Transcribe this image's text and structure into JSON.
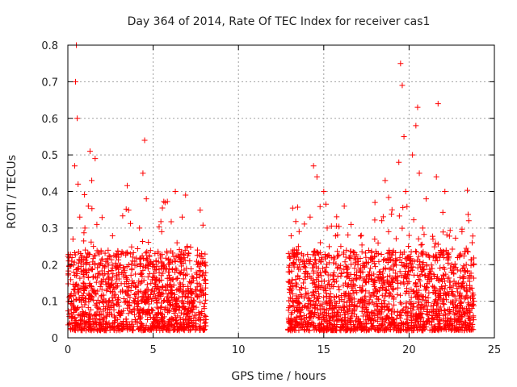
{
  "chart_data": {
    "type": "scatter",
    "title": "Day 364 of 2014, Rate Of TEC Index for receiver cas1",
    "xlabel": "GPS time / hours",
    "ylabel": "ROTI / TECUs",
    "xlim": [
      0,
      25
    ],
    "ylim": [
      0,
      0.8
    ],
    "xticks": [
      "0",
      "5",
      "10",
      "15",
      "20",
      "25"
    ],
    "xtick_values": [
      0,
      5,
      10,
      15,
      20,
      25
    ],
    "yticks": [
      "0",
      "0.1",
      "0.2",
      "0.3",
      "0.4",
      "0.5",
      "0.6",
      "0.7",
      "0.8"
    ],
    "ytick_values": [
      0,
      0.1,
      0.2,
      0.3,
      0.4,
      0.5,
      0.6,
      0.7,
      0.8
    ],
    "grid": true,
    "marker": "+",
    "color": "#ff0000",
    "data_windows_hours": [
      [
        0.0,
        8.1
      ],
      [
        12.9,
        23.8
      ]
    ],
    "series": [
      {
        "name": "ROTI",
        "points": [
          [
            0.1,
            0.04
          ],
          [
            0.2,
            0.12
          ],
          [
            0.3,
            0.27
          ],
          [
            0.4,
            0.47
          ],
          [
            0.45,
            0.7
          ],
          [
            0.5,
            0.8
          ],
          [
            0.55,
            0.6
          ],
          [
            0.6,
            0.42
          ],
          [
            0.7,
            0.33
          ],
          [
            0.8,
            0.22
          ],
          [
            0.9,
            0.15
          ],
          [
            1.0,
            0.3
          ],
          [
            1.1,
            0.18
          ],
          [
            1.2,
            0.36
          ],
          [
            1.3,
            0.51
          ],
          [
            1.4,
            0.43
          ],
          [
            1.5,
            0.25
          ],
          [
            1.6,
            0.49
          ],
          [
            1.7,
            0.31
          ],
          [
            1.8,
            0.2
          ],
          [
            1.9,
            0.14
          ],
          [
            2.0,
            0.1
          ],
          [
            2.2,
            0.08
          ],
          [
            2.4,
            0.16
          ],
          [
            2.6,
            0.11
          ],
          [
            2.8,
            0.19
          ],
          [
            3.0,
            0.07
          ],
          [
            3.2,
            0.13
          ],
          [
            3.4,
            0.17
          ],
          [
            3.6,
            0.09
          ],
          [
            3.8,
            0.21
          ],
          [
            4.0,
            0.12
          ],
          [
            4.2,
            0.3
          ],
          [
            4.4,
            0.45
          ],
          [
            4.5,
            0.54
          ],
          [
            4.6,
            0.38
          ],
          [
            4.7,
            0.2
          ],
          [
            4.9,
            0.1
          ],
          [
            5.1,
            0.15
          ],
          [
            5.3,
            0.08
          ],
          [
            5.5,
            0.29
          ],
          [
            5.7,
            0.37
          ],
          [
            5.9,
            0.18
          ],
          [
            6.1,
            0.12
          ],
          [
            6.3,
            0.4
          ],
          [
            6.5,
            0.22
          ],
          [
            6.7,
            0.33
          ],
          [
            6.9,
            0.39
          ],
          [
            7.0,
            0.25
          ],
          [
            7.2,
            0.15
          ],
          [
            7.4,
            0.1
          ],
          [
            7.6,
            0.2
          ],
          [
            7.8,
            0.13
          ],
          [
            8.0,
            0.17
          ],
          [
            8.1,
            0.05
          ],
          [
            13.0,
            0.18
          ],
          [
            13.2,
            0.24
          ],
          [
            13.4,
            0.1
          ],
          [
            13.6,
            0.06
          ],
          [
            13.8,
            0.15
          ],
          [
            14.0,
            0.21
          ],
          [
            14.2,
            0.33
          ],
          [
            14.4,
            0.47
          ],
          [
            14.6,
            0.44
          ],
          [
            14.8,
            0.26
          ],
          [
            15.0,
            0.4
          ],
          [
            15.2,
            0.3
          ],
          [
            15.4,
            0.12
          ],
          [
            15.6,
            0.08
          ],
          [
            15.8,
            0.19
          ],
          [
            16.0,
            0.25
          ],
          [
            16.2,
            0.36
          ],
          [
            16.4,
            0.14
          ],
          [
            16.6,
            0.31
          ],
          [
            16.8,
            0.09
          ],
          [
            17.0,
            0.2
          ],
          [
            17.2,
            0.28
          ],
          [
            17.4,
            0.11
          ],
          [
            17.6,
            0.17
          ],
          [
            17.8,
            0.07
          ],
          [
            18.0,
            0.37
          ],
          [
            18.2,
            0.23
          ],
          [
            18.4,
            0.32
          ],
          [
            18.6,
            0.43
          ],
          [
            18.8,
            0.29
          ],
          [
            19.0,
            0.35
          ],
          [
            19.2,
            0.21
          ],
          [
            19.4,
            0.48
          ],
          [
            19.5,
            0.75
          ],
          [
            19.6,
            0.69
          ],
          [
            19.7,
            0.55
          ],
          [
            19.8,
            0.4
          ],
          [
            20.0,
            0.28
          ],
          [
            20.2,
            0.5
          ],
          [
            20.4,
            0.58
          ],
          [
            20.5,
            0.63
          ],
          [
            20.6,
            0.45
          ],
          [
            20.8,
            0.3
          ],
          [
            21.0,
            0.38
          ],
          [
            21.2,
            0.22
          ],
          [
            21.4,
            0.27
          ],
          [
            21.6,
            0.44
          ],
          [
            21.7,
            0.64
          ],
          [
            21.9,
            0.16
          ],
          [
            22.1,
            0.4
          ],
          [
            22.3,
            0.12
          ],
          [
            22.5,
            0.2
          ],
          [
            22.7,
            0.09
          ],
          [
            22.9,
            0.15
          ],
          [
            23.1,
            0.29
          ],
          [
            23.3,
            0.18
          ],
          [
            23.5,
            0.32
          ],
          [
            23.7,
            0.26
          ],
          [
            23.8,
            0.1
          ]
        ]
      }
    ]
  }
}
